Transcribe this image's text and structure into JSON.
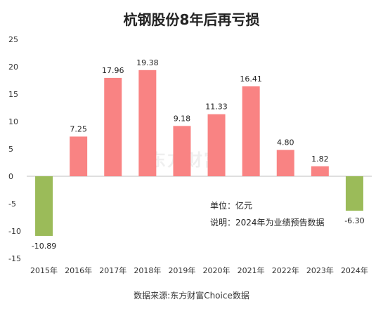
{
  "title": "杭钢股份8年后再亏损",
  "source": "数据来源:东方财富Choice数据",
  "notes": {
    "unit": "单位：亿元",
    "explanation": "说明：2024年为业绩预告数据"
  },
  "watermark": "东方财富",
  "colors": {
    "positive": "#f98383",
    "negative": "#9bbb59"
  },
  "chart_data": {
    "type": "bar",
    "title": "杭钢股份8年后再亏损",
    "categories": [
      "2015年",
      "2016年",
      "2017年",
      "2018年",
      "2019年",
      "2020年",
      "2021年",
      "2022年",
      "2023年",
      "2024年"
    ],
    "values": [
      -10.89,
      7.25,
      17.96,
      19.38,
      9.18,
      11.33,
      16.41,
      4.8,
      1.82,
      -6.3
    ],
    "value_labels": [
      "-10.89",
      "7.25",
      "17.96",
      "19.38",
      "9.18",
      "11.33",
      "16.41",
      "4.80",
      "1.82",
      "-6.30"
    ],
    "ylim": [
      -15,
      25
    ],
    "yticks": [
      25,
      20,
      15,
      10,
      5,
      0,
      -5,
      -10,
      -15
    ],
    "grid": false,
    "legend": "none"
  }
}
